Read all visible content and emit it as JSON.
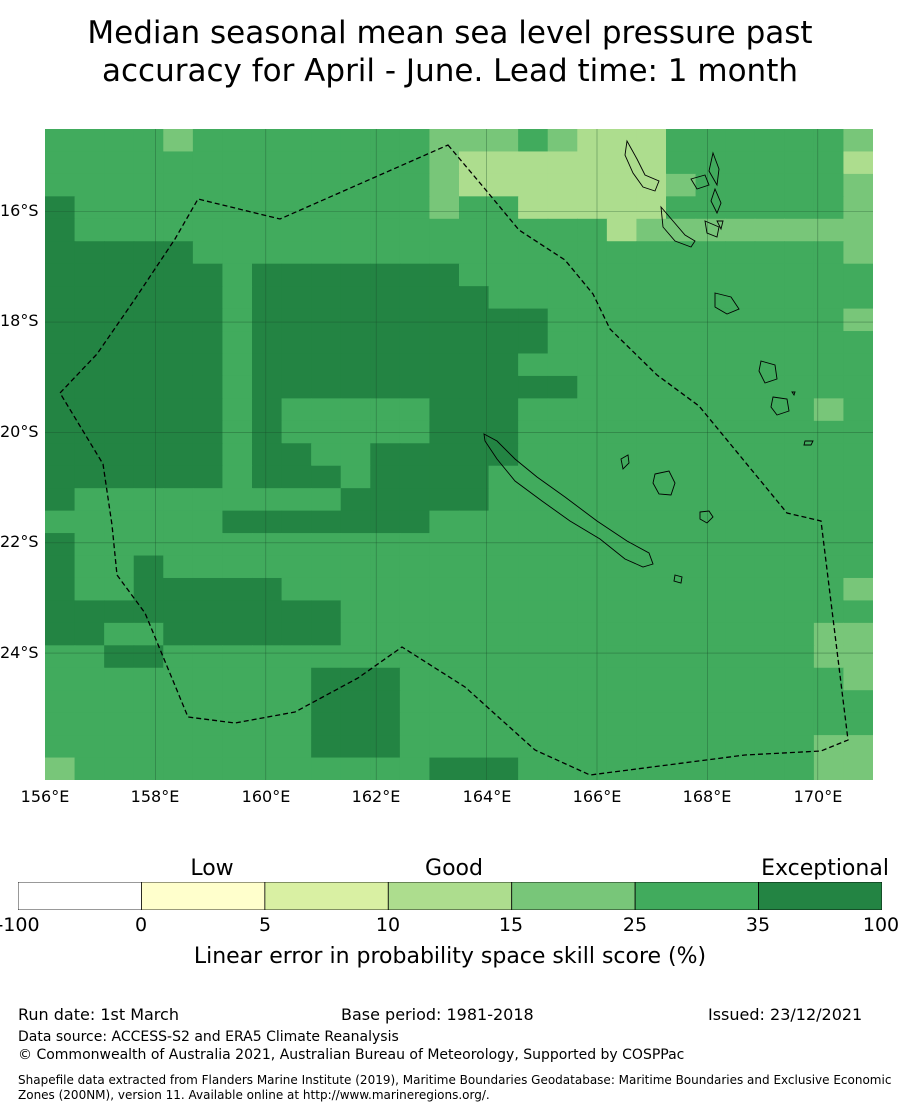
{
  "title_line1": "Median seasonal mean sea level pressure past",
  "title_line2": "accuracy for April - June. Lead time: 1 month",
  "map": {
    "lon_range": [
      156,
      171
    ],
    "lat_range": [
      -26.3,
      -14.5
    ],
    "lat_labels": [
      "16°S",
      "18°S",
      "20°S",
      "22°S",
      "24°S"
    ],
    "lon_labels": [
      "156°E",
      "158°E",
      "160°E",
      "162°E",
      "164°E",
      "166°E",
      "168°E",
      "170°E"
    ],
    "grid_color": "#1a4d2a",
    "eez_line": "dashed-black",
    "skill_grid_rows_north_to_south": [
      "EEEEFEEEEEEEEFFFEFGGGEEEEEEF",
      "EEEEEEEEEEEEEFGGGGGGGEEEEEEG",
      "EEEEEEEEEEEEEFGGGGGGGFEEEEEF",
      "HEEEEEEEEEEEEFEEGGGGGEEEEEEF",
      "HEEEEEEEEEEEEEEEEEEGFFFFFFFF",
      "HHHHHEEEEEEEEEEEEEEEEEEEEEEF",
      "HHHHHHEHHHHHHHEEEEEEEEEEEEEE",
      "HHHHHHEHHHHHHHHEEEEEEEEEEEEE",
      "HHHHHHEHHHHHHHHHHEEEEEEEEEEF",
      "HHHHHHEHHHHHHHHHHEEEEEEEEEEE",
      "HHHHHHEHHHHHHHHHEEEEEEEEEEEE",
      "HHHHHHEHHHHHHHHHHHEEEEEEEEEE",
      "HHHHHHEHEEEEEHHHEEEEEEEEEEFE",
      "HHHHHHEHEEEEEHHHEEEEEEEEEEEE",
      "HHHHHHEHHEEHHHHHEEEEEEEEEEEE",
      "HHHHHHEHHHEHHHHEEEEEEEEEEEEE",
      "HEEEEEEEEEHHHHHEEEEEEEEEEEEE",
      "EEEEEEHHHHHHHEEEEEEEEEEEEEEE",
      "HEEEEEEEEEEEEEEEEEEEEEEEEEEE",
      "HEEHEEEEEEEEEEEEEEEEEEEEEEEE",
      "HEEHHHHHEEEEEEEEEEEEEEEEEEEF",
      "HHHHHHHHHHEEEEEEEEEEEEEEEEEE",
      "HHEEHHHHHHEEEEEEEEEEEEEEEEFF",
      "EEHHEEEEEEEEEEEEEEEEEEEEEEFF",
      "EEEEEEEEEHHHEEEEEEEEEEEEEEEF",
      "EEEEEEEEEHHHEEEEEEEEEEEEEEEE",
      "EEEEEEEEEHHHEEEEEEEEEEEEEEEE",
      "EEEEEEEEEHHHEEEEEEEEEEEEEEFF",
      "FEEEEEEEEEEEEHHHEEEEEEEEEEFF"
    ],
    "skill_class_colors": {
      "F": "#78c679",
      "G": "#addd8e",
      "E": "#41ab5d",
      "H": "#238443"
    }
  },
  "colorbar": {
    "category_labels": [
      "Low",
      "Good",
      "Exceptional"
    ],
    "ticks": [
      "-100",
      "0",
      "5",
      "10",
      "15",
      "25",
      "35",
      "100"
    ],
    "colors": [
      "#ffffff",
      "#ffffcc",
      "#d9f0a3",
      "#addd8e",
      "#78c679",
      "#41ab5d",
      "#238443"
    ],
    "label": "Linear error in probability space skill score (%)"
  },
  "footer": {
    "run_date": "Run date: 1st March",
    "base_period": "Base period: 1981-2018",
    "issued": "Issued: 23/12/2021",
    "data_source": "Data source: ACCESS-S2 and ERA5 Climate Reanalysis",
    "copyright": "© Commonwealth of Australia 2021, Australian Bureau of Meteorology, Supported by COSPPac",
    "shapefile": "Shapefile data extracted from Flanders Marine Institute (2019), Maritime Boundaries Geodatabase: Maritime Boundaries and Exclusive Economic Zones (200NM), version 11. Available online at http://www.marineregions.org/."
  }
}
